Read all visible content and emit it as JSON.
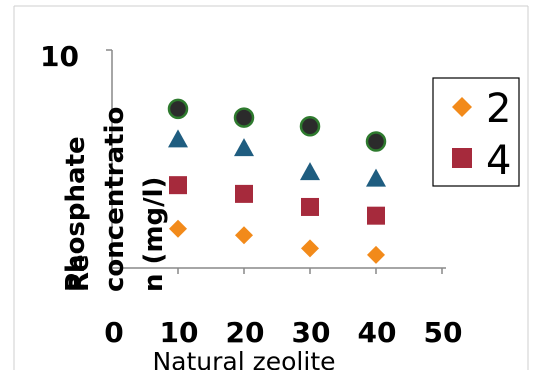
{
  "chart_data": {
    "type": "scatter",
    "title": "",
    "xlabel": "Natural zeolite",
    "ylabel_lines": [
      "Phosphate",
      "concentratio",
      "n (mg/l)"
    ],
    "ylabel_overlap": "Re",
    "xlim": [
      0,
      50
    ],
    "ylim": [
      0,
      10
    ],
    "x_ticks": [
      "0",
      "10",
      "20",
      "30",
      "40",
      "50"
    ],
    "y_ticks": [
      "10"
    ],
    "legend_position": "right",
    "legend_entries": [
      {
        "label": "2",
        "marker": "diamond",
        "color": "#f28a1a"
      },
      {
        "label": "4",
        "marker": "square",
        "color": "#a62a3c"
      }
    ],
    "series": [
      {
        "name": "2",
        "marker": "diamond",
        "color": "#f28a1a",
        "x": [
          10,
          20,
          30,
          40
        ],
        "y": [
          1.8,
          1.5,
          0.9,
          0.6
        ]
      },
      {
        "name": "4",
        "marker": "square",
        "color": "#a62a3c",
        "x": [
          10,
          20,
          30,
          40
        ],
        "y": [
          3.8,
          3.4,
          2.8,
          2.4
        ]
      },
      {
        "name": "",
        "marker": "triangle",
        "color": "#1f5d80",
        "x": [
          10,
          20,
          30,
          40
        ],
        "y": [
          5.9,
          5.5,
          4.4,
          4.1
        ]
      },
      {
        "name": "",
        "marker": "circle",
        "color": "#2e7a2e",
        "x": [
          10,
          20,
          30,
          40
        ],
        "y": [
          7.3,
          6.9,
          6.5,
          5.8
        ]
      }
    ]
  }
}
